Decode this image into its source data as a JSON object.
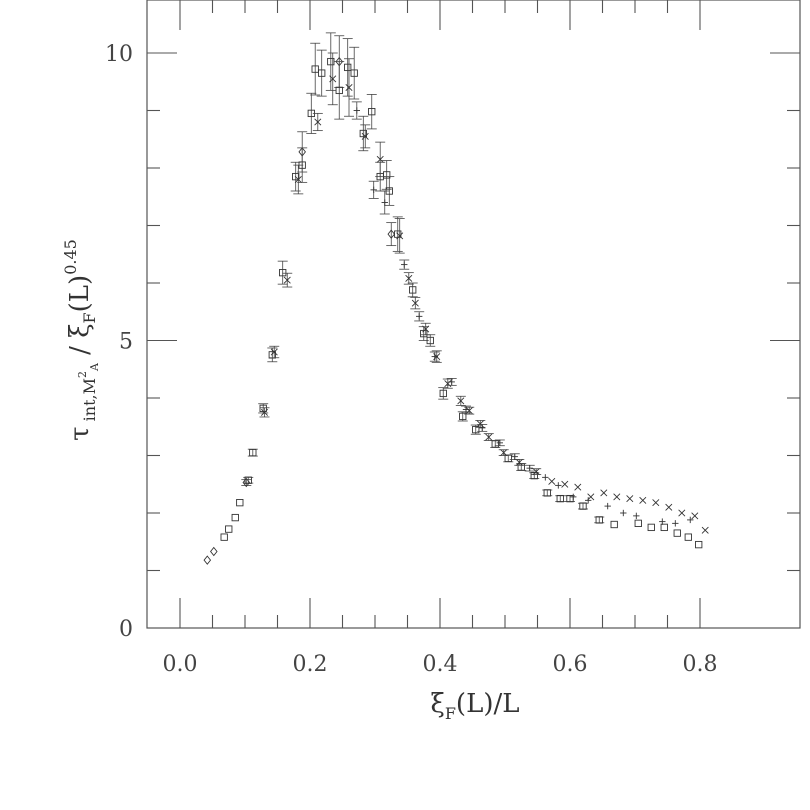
{
  "chart_data": {
    "type": "scatter",
    "title": "",
    "xlabel": "ξF(L)/L",
    "ylabel": "τint,M²A / ξF(L)^0.45",
    "xlim": [
      -0.02,
      0.8
    ],
    "ylim": [
      0,
      10.8
    ],
    "x_ticks": [
      "0.0",
      "0.2",
      "0.4",
      "0.6",
      "0.8"
    ],
    "y_ticks": [
      "0",
      "5",
      "10"
    ],
    "grid": false,
    "legend": "none",
    "series": [
      {
        "marker": "diamond",
        "points": [
          [
            0.042,
            1.18
          ],
          [
            0.052,
            1.33
          ],
          [
            0.102,
            2.53
          ],
          [
            0.188,
            8.28
          ],
          [
            0.245,
            9.85
          ],
          [
            0.325,
            6.85
          ]
        ],
        "err": [
          0.03,
          0.03,
          0.05,
          0.35,
          0.45,
          0.2
        ]
      },
      {
        "marker": "square",
        "points": [
          [
            0.068,
            1.58
          ],
          [
            0.075,
            1.72
          ],
          [
            0.085,
            1.92
          ],
          [
            0.092,
            2.18
          ],
          [
            0.105,
            2.57
          ],
          [
            0.112,
            3.05
          ],
          [
            0.128,
            3.82
          ],
          [
            0.142,
            4.75
          ],
          [
            0.158,
            6.18
          ],
          [
            0.178,
            7.85
          ],
          [
            0.188,
            8.05
          ],
          [
            0.202,
            8.95
          ],
          [
            0.208,
            9.72
          ],
          [
            0.218,
            9.65
          ],
          [
            0.232,
            9.85
          ],
          [
            0.245,
            9.35
          ],
          [
            0.258,
            9.75
          ],
          [
            0.268,
            9.65
          ],
          [
            0.282,
            8.6
          ],
          [
            0.295,
            8.98
          ],
          [
            0.308,
            7.85
          ],
          [
            0.318,
            7.88
          ],
          [
            0.322,
            7.6
          ],
          [
            0.335,
            6.85
          ],
          [
            0.358,
            5.88
          ],
          [
            0.375,
            5.12
          ],
          [
            0.385,
            5.0
          ],
          [
            0.405,
            4.08
          ],
          [
            0.435,
            3.68
          ],
          [
            0.455,
            3.45
          ],
          [
            0.485,
            3.2
          ],
          [
            0.505,
            2.95
          ],
          [
            0.525,
            2.8
          ],
          [
            0.545,
            2.65
          ],
          [
            0.565,
            2.35
          ],
          [
            0.585,
            2.25
          ],
          [
            0.6,
            2.25
          ],
          [
            0.62,
            2.12
          ],
          [
            0.645,
            1.88
          ],
          [
            0.668,
            1.8
          ],
          [
            0.705,
            1.82
          ],
          [
            0.725,
            1.75
          ],
          [
            0.745,
            1.75
          ],
          [
            0.765,
            1.65
          ],
          [
            0.782,
            1.58
          ],
          [
            0.798,
            1.45
          ]
        ],
        "err": [
          0.03,
          0.03,
          0.04,
          0.04,
          0.05,
          0.06,
          0.08,
          0.12,
          0.2,
          0.25,
          0.3,
          0.35,
          0.45,
          0.4,
          0.5,
          0.5,
          0.5,
          0.45,
          0.3,
          0.3,
          0.25,
          0.25,
          0.25,
          0.3,
          0.12,
          0.12,
          0.1,
          0.1,
          0.08,
          0.08,
          0.06,
          0.06,
          0.06,
          0.05,
          0.05,
          0.05,
          0.05,
          0.05,
          0.05,
          0.04,
          0.04,
          0.04,
          0.04,
          0.04,
          0.04,
          0.04
        ]
      },
      {
        "marker": "x",
        "points": [
          [
            0.13,
            3.75
          ],
          [
            0.145,
            4.8
          ],
          [
            0.165,
            6.05
          ],
          [
            0.182,
            7.8
          ],
          [
            0.212,
            8.8
          ],
          [
            0.235,
            9.55
          ],
          [
            0.26,
            9.4
          ],
          [
            0.285,
            8.55
          ],
          [
            0.308,
            8.15
          ],
          [
            0.338,
            6.82
          ],
          [
            0.352,
            6.08
          ],
          [
            0.362,
            5.65
          ],
          [
            0.378,
            5.2
          ],
          [
            0.395,
            4.72
          ],
          [
            0.412,
            4.25
          ],
          [
            0.432,
            3.95
          ],
          [
            0.445,
            3.78
          ],
          [
            0.462,
            3.55
          ],
          [
            0.475,
            3.32
          ],
          [
            0.498,
            3.05
          ],
          [
            0.522,
            2.88
          ],
          [
            0.548,
            2.72
          ],
          [
            0.572,
            2.55
          ],
          [
            0.592,
            2.5
          ],
          [
            0.612,
            2.45
          ],
          [
            0.632,
            2.28
          ],
          [
            0.652,
            2.35
          ],
          [
            0.672,
            2.28
          ],
          [
            0.692,
            2.25
          ],
          [
            0.712,
            2.22
          ],
          [
            0.732,
            2.18
          ],
          [
            0.752,
            2.1
          ],
          [
            0.772,
            2.0
          ],
          [
            0.792,
            1.95
          ],
          [
            0.808,
            1.7
          ]
        ],
        "err": [
          0.08,
          0.1,
          0.12,
          0.25,
          0.15,
          0.45,
          0.5,
          0.2,
          0.3,
          0.3,
          0.1,
          0.1,
          0.1,
          0.1,
          0.08,
          0.08,
          0.06,
          0.06,
          0.06,
          0.05,
          0.05,
          0.05,
          0.04,
          0.04,
          0.04,
          0.04,
          0.04,
          0.04,
          0.04,
          0.04,
          0.04,
          0.04,
          0.04,
          0.04,
          0.04
        ]
      },
      {
        "marker": "plus",
        "points": [
          [
            0.272,
            9.0
          ],
          [
            0.298,
            7.62
          ],
          [
            0.315,
            7.4
          ],
          [
            0.345,
            6.32
          ],
          [
            0.368,
            5.42
          ],
          [
            0.392,
            4.72
          ],
          [
            0.418,
            4.28
          ],
          [
            0.44,
            3.8
          ],
          [
            0.465,
            3.48
          ],
          [
            0.492,
            3.22
          ],
          [
            0.515,
            2.98
          ],
          [
            0.538,
            2.78
          ],
          [
            0.562,
            2.62
          ],
          [
            0.582,
            2.48
          ],
          [
            0.605,
            2.28
          ],
          [
            0.628,
            2.22
          ],
          [
            0.658,
            2.12
          ],
          [
            0.682,
            2.0
          ],
          [
            0.702,
            1.95
          ],
          [
            0.742,
            1.85
          ],
          [
            0.762,
            1.82
          ],
          [
            0.785,
            1.88
          ]
        ],
        "err": [
          0.15,
          0.15,
          0.2,
          0.08,
          0.08,
          0.08,
          0.06,
          0.06,
          0.06,
          0.05,
          0.05,
          0.05,
          0.04,
          0.04,
          0.04,
          0.04,
          0.04,
          0.04,
          0.04,
          0.04,
          0.04,
          0.04
        ]
      }
    ]
  }
}
